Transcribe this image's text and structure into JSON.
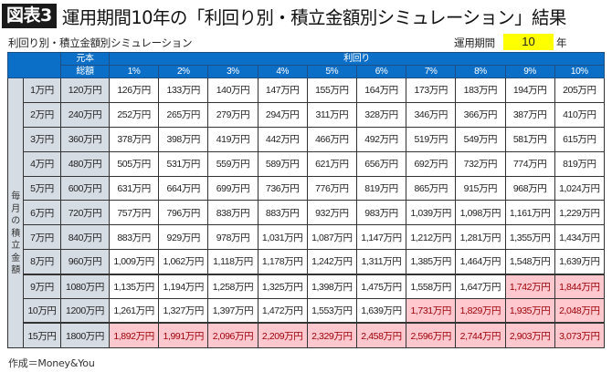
{
  "header": {
    "badge": "図表3",
    "title": "運用期間10年の「利回り別・積立金額別シミュレーション」結果"
  },
  "subtitle": "利回り別・積立金額別シミュレーション",
  "period": {
    "label": "運用期間",
    "value": "10",
    "unit": "年"
  },
  "table": {
    "principal_header_line1": "元本",
    "principal_header_line2": "総額",
    "rate_group_header": "利回り",
    "rates": [
      "1%",
      "2%",
      "3%",
      "4%",
      "5%",
      "6%",
      "7%",
      "8%",
      "9%",
      "10%"
    ],
    "row_group_label": "毎月の積立金額",
    "rows": [
      {
        "monthly": "1万円",
        "principal": "120万円",
        "values": [
          "126万円",
          "133万円",
          "140万円",
          "147万円",
          "155万円",
          "164万円",
          "173万円",
          "183万円",
          "194万円",
          "205万円"
        ],
        "highlight": [
          false,
          false,
          false,
          false,
          false,
          false,
          false,
          false,
          false,
          false
        ]
      },
      {
        "monthly": "2万円",
        "principal": "240万円",
        "values": [
          "252万円",
          "265万円",
          "279万円",
          "294万円",
          "311万円",
          "328万円",
          "346万円",
          "366万円",
          "387万円",
          "410万円"
        ],
        "highlight": [
          false,
          false,
          false,
          false,
          false,
          false,
          false,
          false,
          false,
          false
        ]
      },
      {
        "monthly": "3万円",
        "principal": "360万円",
        "values": [
          "378万円",
          "398万円",
          "419万円",
          "442万円",
          "466万円",
          "492万円",
          "519万円",
          "549万円",
          "581万円",
          "615万円"
        ],
        "highlight": [
          false,
          false,
          false,
          false,
          false,
          false,
          false,
          false,
          false,
          false
        ]
      },
      {
        "monthly": "4万円",
        "principal": "480万円",
        "values": [
          "505万円",
          "531万円",
          "559万円",
          "589万円",
          "621万円",
          "656万円",
          "692万円",
          "732万円",
          "774万円",
          "819万円"
        ],
        "highlight": [
          false,
          false,
          false,
          false,
          false,
          false,
          false,
          false,
          false,
          false
        ]
      },
      {
        "monthly": "5万円",
        "principal": "600万円",
        "values": [
          "631万円",
          "664万円",
          "699万円",
          "736万円",
          "776万円",
          "819万円",
          "865万円",
          "915万円",
          "968万円",
          "1,024万円"
        ],
        "highlight": [
          false,
          false,
          false,
          false,
          false,
          false,
          false,
          false,
          false,
          false
        ]
      },
      {
        "monthly": "6万円",
        "principal": "720万円",
        "values": [
          "757万円",
          "796万円",
          "838万円",
          "883万円",
          "932万円",
          "983万円",
          "1,039万円",
          "1,098万円",
          "1,161万円",
          "1,229万円"
        ],
        "highlight": [
          false,
          false,
          false,
          false,
          false,
          false,
          false,
          false,
          false,
          false
        ]
      },
      {
        "monthly": "7万円",
        "principal": "840万円",
        "values": [
          "883万円",
          "929万円",
          "978万円",
          "1,031万円",
          "1,087万円",
          "1,147万円",
          "1,212万円",
          "1,281万円",
          "1,355万円",
          "1,434万円"
        ],
        "highlight": [
          false,
          false,
          false,
          false,
          false,
          false,
          false,
          false,
          false,
          false
        ]
      },
      {
        "monthly": "8万円",
        "principal": "960万円",
        "values": [
          "1,009万円",
          "1,062万円",
          "1,118万円",
          "1,178万円",
          "1,242万円",
          "1,311万円",
          "1,385万円",
          "1,464万円",
          "1,548万円",
          "1,639万円"
        ],
        "highlight": [
          false,
          false,
          false,
          false,
          false,
          false,
          false,
          false,
          false,
          false
        ]
      },
      {
        "monthly": "9万円",
        "principal": "1080万円",
        "values": [
          "1,135万円",
          "1,194万円",
          "1,258万円",
          "1,325万円",
          "1,398万円",
          "1,475万円",
          "1,558万円",
          "1,647万円",
          "1,742万円",
          "1,844万円"
        ],
        "highlight": [
          false,
          false,
          false,
          false,
          false,
          false,
          false,
          false,
          true,
          true
        ]
      },
      {
        "monthly": "10万円",
        "principal": "1200万円",
        "values": [
          "1,261万円",
          "1,327万円",
          "1,397万円",
          "1,472万円",
          "1,553万円",
          "1,639万円",
          "1,731万円",
          "1,829万円",
          "1,935万円",
          "2,048万円"
        ],
        "highlight": [
          false,
          false,
          false,
          false,
          false,
          false,
          true,
          true,
          true,
          true
        ]
      },
      {
        "monthly": "15万円",
        "principal": "1800万円",
        "values": [
          "1,892万円",
          "1,991万円",
          "2,096万円",
          "2,209万円",
          "2,329万円",
          "2,458万円",
          "2,596万円",
          "2,744万円",
          "2,903万円",
          "3,073万円"
        ],
        "highlight": [
          true,
          true,
          true,
          true,
          true,
          true,
          true,
          true,
          true,
          true
        ]
      }
    ]
  },
  "footer": "作成＝Money&You",
  "colors": {
    "header_blue": "#0b6fc7",
    "label_gray": "#d6dce4",
    "highlight_pink": "#ffc7ce",
    "highlight_text": "#9c0006",
    "period_yellow": "#ffff00"
  }
}
